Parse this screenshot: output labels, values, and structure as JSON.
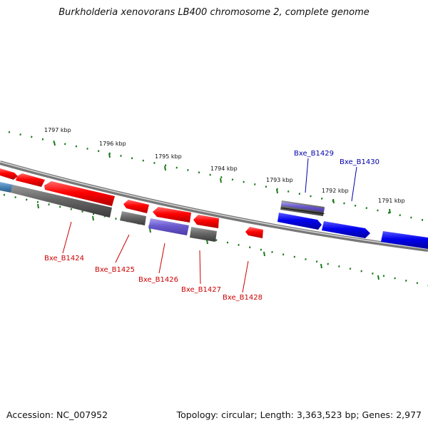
{
  "title": "Burkholderia xenovorans LB400 chromosome 2, complete genome",
  "footer": {
    "accession": "Accession: NC_007952",
    "summary": "Topology: circular; Length: 3,363,523 bp; Genes: 2,977"
  },
  "scale_labels": [
    "1797 kbp",
    "1796 kbp",
    "1795 kbp",
    "1794 kbp",
    "1793 kbp",
    "1792 kbp",
    "1791 kbp"
  ],
  "gene_labels": {
    "forward": [
      "Bxe_B1429",
      "Bxe_B1430"
    ],
    "reverse": [
      "Bxe_B1424",
      "Bxe_B1425",
      "Bxe_B1426",
      "Bxe_B1427",
      "Bxe_B1428"
    ]
  },
  "colors": {
    "cds": "#ff0000",
    "forward_gene": "#0000ee",
    "gene": "#6a5acd",
    "other": "#666666",
    "ticks": "#1a7a1a",
    "label_forward": "#0000aa",
    "label_reverse": "#cc0000"
  }
}
